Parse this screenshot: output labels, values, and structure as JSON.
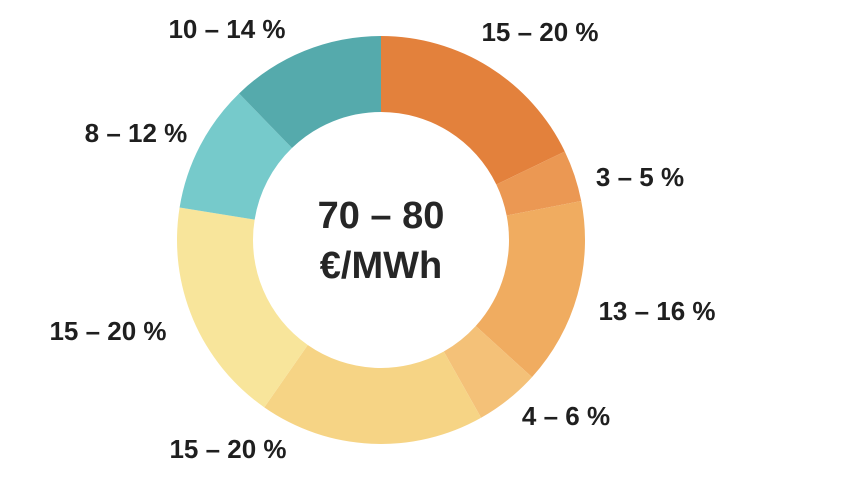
{
  "chart_data": {
    "type": "pie",
    "variant": "donut",
    "center_label": [
      "70 – 80",
      "€/MWh"
    ],
    "slices": [
      {
        "label": "15 – 20 %",
        "value": 17.5,
        "color": "#E3813C"
      },
      {
        "label": "3 – 5 %",
        "value": 4,
        "color": "#EB9853"
      },
      {
        "label": "13 – 16 %",
        "value": 14.5,
        "color": "#F0AC60"
      },
      {
        "label": "4 – 6 %",
        "value": 5,
        "color": "#F4C178"
      },
      {
        "label": "15 – 20 %",
        "value": 17.5,
        "color": "#F6D485"
      },
      {
        "label": "15 – 20 %",
        "value": 17.5,
        "color": "#F8E59B"
      },
      {
        "label": "8 – 12 %",
        "value": 10,
        "color": "#76CACB"
      },
      {
        "label": "10 – 14 %",
        "value": 12,
        "color": "#55AAAC"
      }
    ],
    "start_angle": "12 o'clock",
    "direction": "clockwise",
    "legend": "none"
  }
}
